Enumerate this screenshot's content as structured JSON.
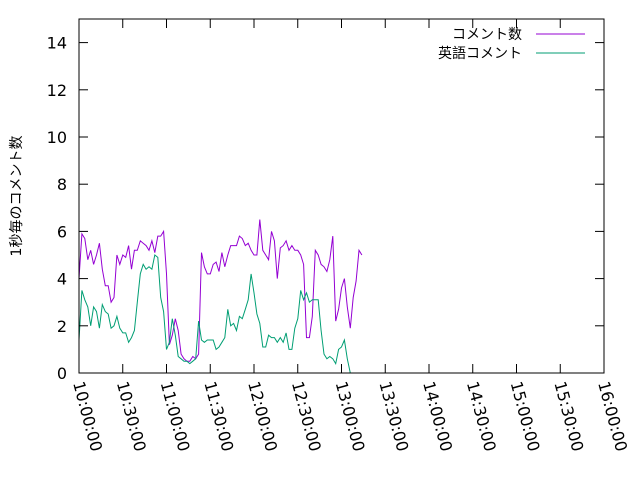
{
  "chart_data": {
    "type": "line",
    "ylabel": "1秒毎のコメント数",
    "ylim": [
      0,
      15
    ],
    "y_ticks": [
      "0",
      "2",
      "4",
      "6",
      "8",
      "10",
      "12",
      "14"
    ],
    "xlim": [
      "10:00:00",
      "16:00:00"
    ],
    "x_ticks": [
      "10:00:00",
      "10:30:00",
      "11:00:00",
      "11:30:00",
      "12:00:00",
      "12:30:00",
      "13:00:00",
      "13:30:00",
      "14:00:00",
      "14:30:00",
      "15:00:00",
      "15:30:00",
      "16:00:00"
    ],
    "legend_position": "top-right",
    "grid": false,
    "series": [
      {
        "name": "コメント数",
        "color": "#9400d3",
        "points": [
          [
            "10:00:00",
            4.0
          ],
          [
            "10:02:00",
            5.9
          ],
          [
            "10:04:00",
            5.7
          ],
          [
            "10:06:00",
            4.8
          ],
          [
            "10:08:00",
            5.2
          ],
          [
            "10:10:00",
            4.6
          ],
          [
            "10:12:00",
            5.0
          ],
          [
            "10:14:00",
            5.5
          ],
          [
            "10:16:00",
            4.4
          ],
          [
            "10:18:00",
            3.7
          ],
          [
            "10:20:00",
            3.7
          ],
          [
            "10:22:00",
            3.0
          ],
          [
            "10:24:00",
            3.2
          ],
          [
            "10:26:00",
            5.0
          ],
          [
            "10:28:00",
            4.6
          ],
          [
            "10:30:00",
            5.0
          ],
          [
            "10:32:00",
            4.9
          ],
          [
            "10:34:00",
            5.4
          ],
          [
            "10:36:00",
            4.4
          ],
          [
            "10:38:00",
            5.2
          ],
          [
            "10:40:00",
            5.2
          ],
          [
            "10:42:00",
            5.6
          ],
          [
            "10:44:00",
            5.5
          ],
          [
            "10:46:00",
            5.4
          ],
          [
            "10:48:00",
            5.2
          ],
          [
            "10:50:00",
            5.6
          ],
          [
            "10:52:00",
            5.1
          ],
          [
            "10:54:00",
            5.8
          ],
          [
            "10:56:00",
            5.8
          ],
          [
            "10:58:00",
            6.0
          ],
          [
            "11:00:00",
            4.2
          ],
          [
            "11:02:00",
            1.2
          ],
          [
            "11:04:00",
            1.6
          ],
          [
            "11:06:00",
            2.3
          ],
          [
            "11:08:00",
            1.8
          ],
          [
            "11:10:00",
            0.8
          ],
          [
            "11:12:00",
            0.6
          ],
          [
            "11:14:00",
            0.5
          ],
          [
            "11:16:00",
            0.5
          ],
          [
            "11:18:00",
            0.7
          ],
          [
            "11:20:00",
            0.6
          ],
          [
            "11:22:00",
            0.8
          ],
          [
            "11:24:00",
            5.1
          ],
          [
            "11:26:00",
            4.5
          ],
          [
            "11:28:00",
            4.2
          ],
          [
            "11:30:00",
            4.2
          ],
          [
            "11:32:00",
            4.6
          ],
          [
            "11:34:00",
            4.7
          ],
          [
            "11:36:00",
            4.3
          ],
          [
            "11:38:00",
            5.1
          ],
          [
            "11:40:00",
            4.5
          ],
          [
            "11:42:00",
            5.0
          ],
          [
            "11:44:00",
            5.4
          ],
          [
            "11:46:00",
            5.4
          ],
          [
            "11:48:00",
            5.4
          ],
          [
            "11:50:00",
            5.8
          ],
          [
            "11:52:00",
            5.7
          ],
          [
            "11:54:00",
            5.4
          ],
          [
            "11:56:00",
            5.5
          ],
          [
            "11:58:00",
            5.2
          ],
          [
            "12:00:00",
            5.0
          ],
          [
            "12:02:00",
            5.0
          ],
          [
            "12:04:00",
            6.5
          ],
          [
            "12:06:00",
            5.2
          ],
          [
            "12:08:00",
            5.0
          ],
          [
            "12:10:00",
            4.8
          ],
          [
            "12:12:00",
            6.0
          ],
          [
            "12:14:00",
            5.6
          ],
          [
            "12:16:00",
            4.0
          ],
          [
            "12:18:00",
            5.3
          ],
          [
            "12:20:00",
            5.4
          ],
          [
            "12:22:00",
            5.6
          ],
          [
            "12:24:00",
            5.2
          ],
          [
            "12:26:00",
            5.4
          ],
          [
            "12:28:00",
            5.2
          ],
          [
            "12:30:00",
            5.2
          ],
          [
            "12:32:00",
            5.0
          ],
          [
            "12:34:00",
            4.6
          ],
          [
            "12:36:00",
            1.5
          ],
          [
            "12:38:00",
            1.5
          ],
          [
            "12:40:00",
            2.4
          ],
          [
            "12:42:00",
            5.2
          ],
          [
            "12:44:00",
            5.0
          ],
          [
            "12:46:00",
            4.6
          ],
          [
            "12:48:00",
            4.5
          ],
          [
            "12:50:00",
            4.3
          ],
          [
            "12:52:00",
            4.8
          ],
          [
            "12:54:00",
            5.8
          ],
          [
            "12:56:00",
            2.2
          ],
          [
            "12:58:00",
            2.7
          ],
          [
            "13:00:00",
            3.6
          ],
          [
            "13:02:00",
            4.0
          ],
          [
            "13:04:00",
            2.8
          ],
          [
            "13:06:00",
            1.9
          ],
          [
            "13:08:00",
            3.2
          ],
          [
            "13:10:00",
            3.9
          ],
          [
            "13:12:00",
            5.2
          ],
          [
            "13:14:00",
            5.0
          ]
        ]
      },
      {
        "name": "英語コメント",
        "color": "#009e73",
        "points": [
          [
            "10:00:00",
            1.4
          ],
          [
            "10:02:00",
            3.5
          ],
          [
            "10:04:00",
            3.1
          ],
          [
            "10:06:00",
            2.8
          ],
          [
            "10:08:00",
            2.0
          ],
          [
            "10:10:00",
            2.8
          ],
          [
            "10:12:00",
            2.6
          ],
          [
            "10:14:00",
            1.9
          ],
          [
            "10:16:00",
            2.9
          ],
          [
            "10:18:00",
            2.6
          ],
          [
            "10:20:00",
            2.5
          ],
          [
            "10:22:00",
            1.9
          ],
          [
            "10:24:00",
            2.0
          ],
          [
            "10:26:00",
            2.4
          ],
          [
            "10:28:00",
            1.9
          ],
          [
            "10:30:00",
            1.7
          ],
          [
            "10:32:00",
            1.7
          ],
          [
            "10:34:00",
            1.3
          ],
          [
            "10:36:00",
            1.5
          ],
          [
            "10:38:00",
            1.8
          ],
          [
            "10:40:00",
            3.0
          ],
          [
            "10:42:00",
            4.2
          ],
          [
            "10:44:00",
            4.6
          ],
          [
            "10:46:00",
            4.4
          ],
          [
            "10:48:00",
            4.5
          ],
          [
            "10:50:00",
            4.4
          ],
          [
            "10:52:00",
            5.0
          ],
          [
            "10:54:00",
            4.9
          ],
          [
            "10:56:00",
            3.2
          ],
          [
            "10:58:00",
            2.6
          ],
          [
            "11:00:00",
            1.0
          ],
          [
            "11:02:00",
            1.3
          ],
          [
            "11:04:00",
            2.3
          ],
          [
            "11:06:00",
            1.6
          ],
          [
            "11:08:00",
            0.7
          ],
          [
            "11:10:00",
            0.6
          ],
          [
            "11:12:00",
            0.5
          ],
          [
            "11:14:00",
            0.5
          ],
          [
            "11:16:00",
            0.4
          ],
          [
            "11:18:00",
            0.5
          ],
          [
            "11:20:00",
            0.6
          ],
          [
            "11:22:00",
            2.2
          ],
          [
            "11:24:00",
            1.4
          ],
          [
            "11:26:00",
            1.3
          ],
          [
            "11:28:00",
            1.4
          ],
          [
            "11:30:00",
            1.4
          ],
          [
            "11:32:00",
            1.4
          ],
          [
            "11:34:00",
            1.0
          ],
          [
            "11:36:00",
            1.1
          ],
          [
            "11:38:00",
            1.3
          ],
          [
            "11:40:00",
            1.5
          ],
          [
            "11:42:00",
            2.7
          ],
          [
            "11:44:00",
            2.0
          ],
          [
            "11:46:00",
            2.1
          ],
          [
            "11:48:00",
            1.8
          ],
          [
            "11:50:00",
            2.4
          ],
          [
            "11:52:00",
            2.3
          ],
          [
            "11:54:00",
            2.7
          ],
          [
            "11:56:00",
            3.1
          ],
          [
            "11:58:00",
            4.2
          ],
          [
            "12:00:00",
            3.4
          ],
          [
            "12:02:00",
            2.5
          ],
          [
            "12:04:00",
            2.1
          ],
          [
            "12:06:00",
            1.1
          ],
          [
            "12:08:00",
            1.1
          ],
          [
            "12:10:00",
            1.6
          ],
          [
            "12:12:00",
            1.5
          ],
          [
            "12:14:00",
            1.5
          ],
          [
            "12:16:00",
            1.3
          ],
          [
            "12:18:00",
            1.5
          ],
          [
            "12:20:00",
            1.3
          ],
          [
            "12:22:00",
            1.7
          ],
          [
            "12:24:00",
            1.0
          ],
          [
            "12:26:00",
            1.0
          ],
          [
            "12:28:00",
            1.9
          ],
          [
            "12:30:00",
            2.3
          ],
          [
            "12:32:00",
            3.5
          ],
          [
            "12:34:00",
            3.1
          ],
          [
            "12:36:00",
            3.4
          ],
          [
            "12:38:00",
            3.0
          ],
          [
            "12:40:00",
            3.1
          ],
          [
            "12:42:00",
            3.1
          ],
          [
            "12:44:00",
            3.1
          ],
          [
            "12:46:00",
            1.8
          ],
          [
            "12:48:00",
            0.8
          ],
          [
            "12:50:00",
            0.6
          ],
          [
            "12:52:00",
            0.7
          ],
          [
            "12:54:00",
            0.6
          ],
          [
            "12:56:00",
            0.4
          ],
          [
            "12:58:00",
            1.0
          ],
          [
            "13:00:00",
            1.1
          ],
          [
            "13:02:00",
            1.4
          ],
          [
            "13:04:00",
            0.6
          ],
          [
            "13:06:00",
            0.0
          ]
        ]
      }
    ]
  }
}
